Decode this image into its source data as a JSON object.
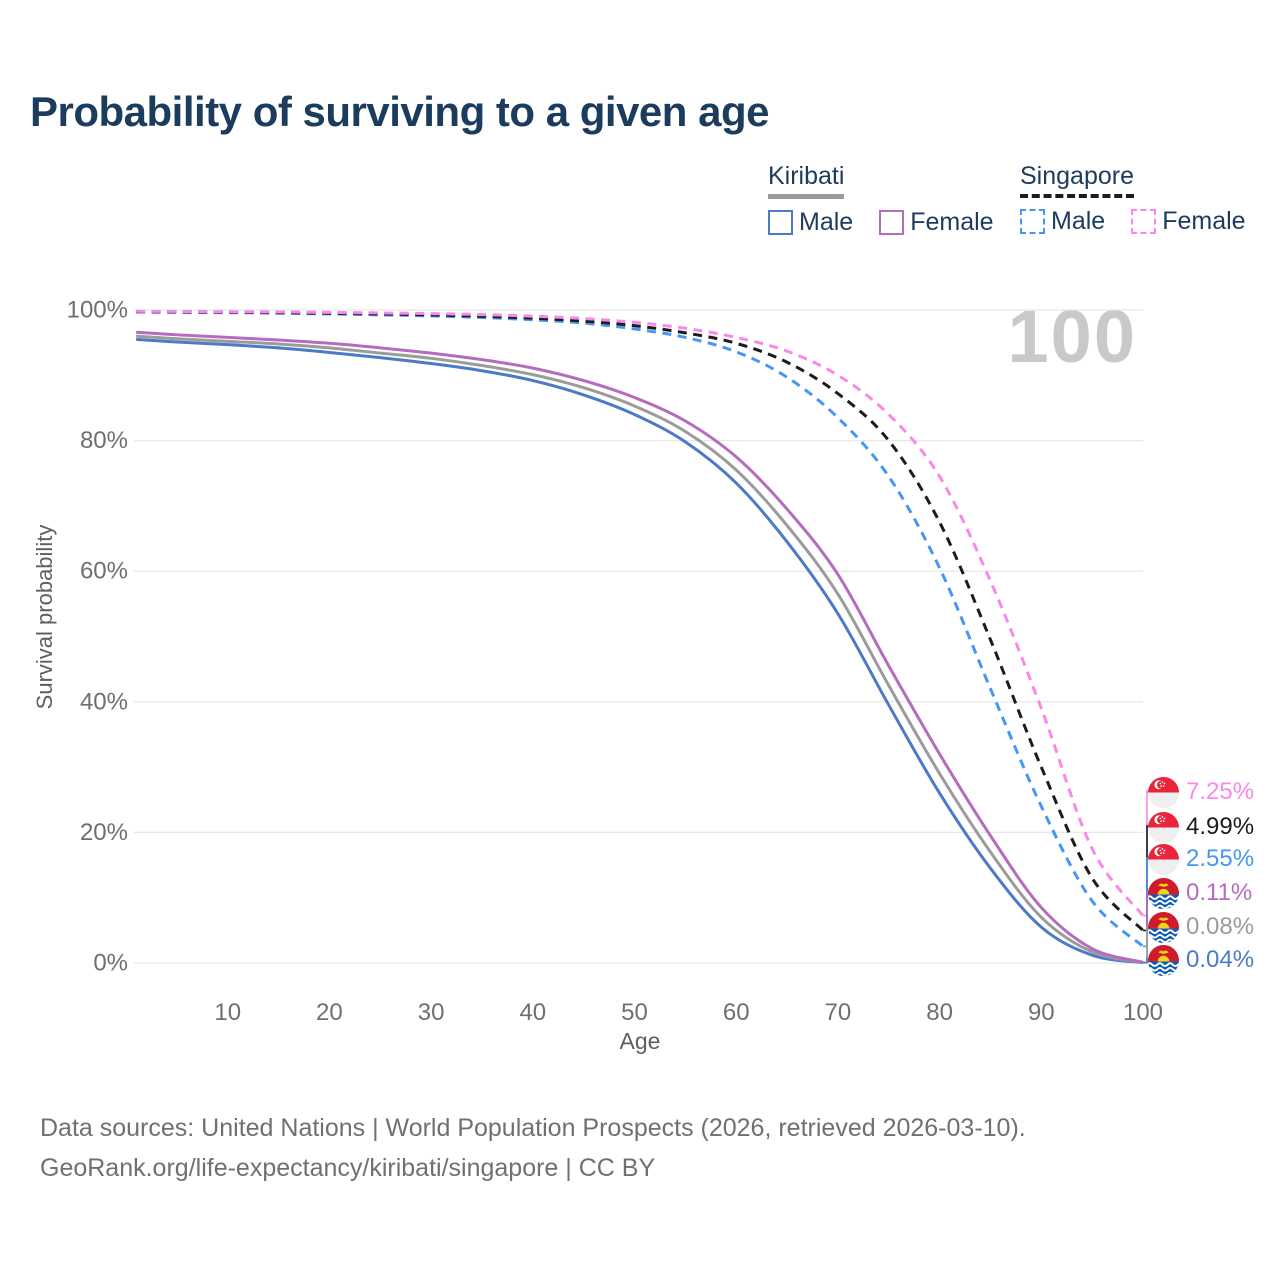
{
  "header": {
    "title": "Probability of surviving to a given age"
  },
  "legend": {
    "kiribati": {
      "name": "Kiribati",
      "male_label": "Male",
      "female_label": "Female"
    },
    "singapore": {
      "name": "Singapore",
      "male_label": "Male",
      "female_label": "Female"
    }
  },
  "colors": {
    "singapore_female": "#fb87e8",
    "singapore_total": "#1c1c1c",
    "singapore_male": "#4697f5",
    "kiribati_female": "#b56cbe",
    "kiribati_total": "#9b9b9b",
    "kiribati_male": "#4d7ac6"
  },
  "chart_data": {
    "type": "line",
    "title": "Probability of surviving to a given age",
    "xlabel": "Age",
    "ylabel": "Survival probability",
    "watermark": "100",
    "xlim": [
      0,
      100
    ],
    "ylim": [
      0,
      100
    ],
    "x_ticks": [
      10,
      20,
      30,
      40,
      50,
      60,
      70,
      80,
      90,
      100
    ],
    "y_ticks": [
      0,
      20,
      40,
      60,
      80,
      100
    ],
    "y_tick_suffix": "%",
    "grid": "horizontal",
    "legend_position": "top-right",
    "ages": [
      1,
      5,
      10,
      15,
      20,
      25,
      30,
      35,
      40,
      45,
      50,
      55,
      60,
      65,
      70,
      75,
      80,
      85,
      90,
      95,
      100
    ],
    "series": [
      {
        "name": "Singapore Female",
        "key": "singapore_female",
        "color": "#fb87e8",
        "dash": true,
        "values": [
          99.8,
          99.78,
          99.75,
          99.7,
          99.63,
          99.55,
          99.45,
          99.3,
          99.05,
          98.7,
          98.1,
          97.2,
          95.8,
          93.7,
          90.0,
          84.0,
          74.5,
          58.5,
          39.0,
          17.5,
          7.25
        ]
      },
      {
        "name": "Singapore Both Sexes",
        "key": "singapore_total",
        "color": "#1c1c1c",
        "dash": true,
        "values": [
          99.75,
          99.72,
          99.68,
          99.6,
          99.5,
          99.4,
          99.25,
          99.05,
          98.75,
          98.3,
          97.6,
          96.5,
          94.9,
          92.0,
          87.2,
          80.0,
          67.5,
          49.5,
          30.0,
          13.0,
          4.99
        ]
      },
      {
        "name": "Singapore Male",
        "key": "singapore_male",
        "color": "#4697f5",
        "dash": true,
        "values": [
          99.7,
          99.65,
          99.6,
          99.5,
          99.4,
          99.25,
          99.1,
          98.85,
          98.5,
          98.0,
          97.1,
          95.8,
          93.6,
          89.7,
          83.5,
          74.5,
          60.5,
          42.0,
          24.0,
          9.5,
          2.55
        ]
      },
      {
        "name": "Kiribati Female",
        "key": "kiribati_female",
        "color": "#b56cbe",
        "dash": false,
        "values": [
          96.6,
          96.2,
          95.8,
          95.4,
          94.9,
          94.2,
          93.4,
          92.4,
          91.1,
          89.2,
          86.6,
          83.0,
          77.5,
          69.5,
          59.5,
          45.5,
          32.0,
          19.5,
          8.5,
          2.2,
          0.11
        ]
      },
      {
        "name": "Kiribati Both Sexes",
        "key": "kiribati_total",
        "color": "#9b9b9b",
        "dash": false,
        "values": [
          96.0,
          95.6,
          95.2,
          94.8,
          94.2,
          93.4,
          92.6,
          91.5,
          90.1,
          88.1,
          85.3,
          81.4,
          75.5,
          67.0,
          56.5,
          42.5,
          29.0,
          17.0,
          7.0,
          1.7,
          0.08
        ]
      },
      {
        "name": "Kiribati Male",
        "key": "kiribati_male",
        "color": "#4d7ac6",
        "dash": false,
        "values": [
          95.5,
          95.1,
          94.7,
          94.2,
          93.5,
          92.7,
          91.8,
          90.7,
          89.2,
          87.0,
          84.0,
          79.8,
          73.5,
          64.5,
          53.5,
          39.5,
          26.0,
          14.5,
          5.5,
          1.2,
          0.04
        ]
      }
    ],
    "end_labels": [
      {
        "series": "Singapore Female",
        "key": "singapore_female",
        "label": "7.25%",
        "flag": "singapore"
      },
      {
        "series": "Singapore Both Sexes",
        "key": "singapore_total",
        "label": "4.99%",
        "flag": "singapore"
      },
      {
        "series": "Singapore Male",
        "key": "singapore_male",
        "label": "2.55%",
        "flag": "singapore"
      },
      {
        "series": "Kiribati Female",
        "key": "kiribati_female",
        "label": "0.11%",
        "flag": "kiribati"
      },
      {
        "series": "Kiribati Both Sexes",
        "key": "kiribati_total",
        "label": "0.08%",
        "flag": "kiribati"
      },
      {
        "series": "Kiribati Male",
        "key": "kiribati_male",
        "label": "0.04%",
        "flag": "kiribati"
      }
    ]
  },
  "footer": {
    "line1": "Data sources: United Nations | World Population Prospects (2026, retrieved 2026-03-10).",
    "line2": "GeoRank.org/life-expectancy/kiribati/singapore | CC BY"
  }
}
